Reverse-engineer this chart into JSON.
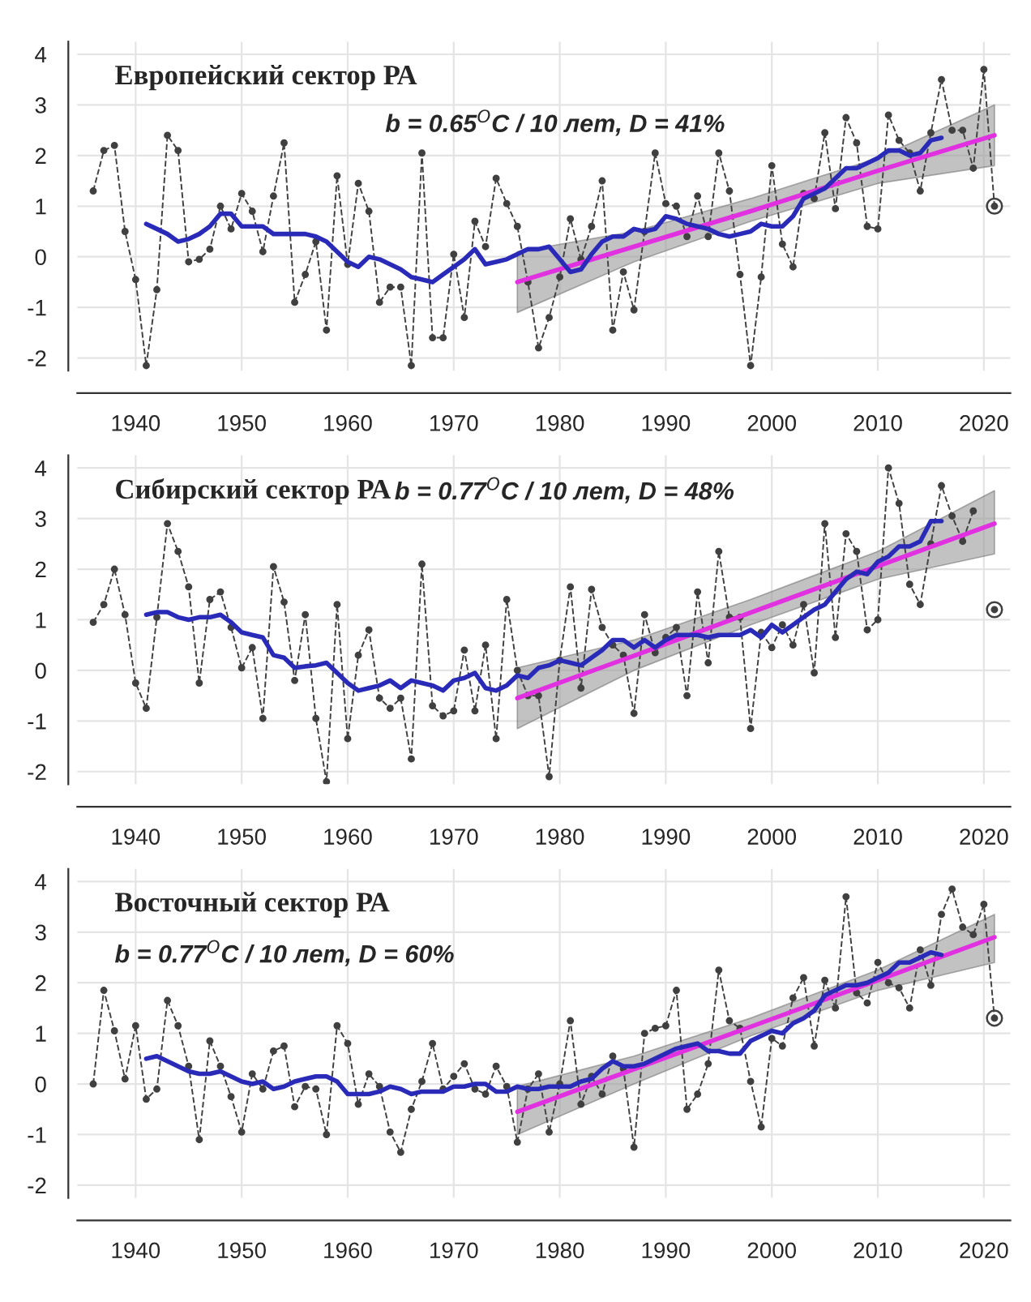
{
  "chart_data": [
    {
      "type": "line",
      "title": "Европейский сектор РА",
      "subtitle": "b = 0.65$^{O}$C / 10 лет, D = 41%",
      "x": [
        1936,
        1937,
        1938,
        1939,
        1940,
        1941,
        1942,
        1943,
        1944,
        1945,
        1946,
        1947,
        1948,
        1949,
        1950,
        1951,
        1952,
        1953,
        1954,
        1955,
        1956,
        1957,
        1958,
        1959,
        1960,
        1961,
        1962,
        1963,
        1964,
        1965,
        1966,
        1967,
        1968,
        1969,
        1970,
        1971,
        1972,
        1973,
        1974,
        1975,
        1976,
        1977,
        1978,
        1979,
        1980,
        1981,
        1982,
        1983,
        1984,
        1985,
        1986,
        1987,
        1988,
        1989,
        1990,
        1991,
        1992,
        1993,
        1994,
        1995,
        1996,
        1997,
        1998,
        1999,
        2000,
        2001,
        2002,
        2003,
        2004,
        2005,
        2006,
        2007,
        2008,
        2009,
        2010,
        2011,
        2012,
        2013,
        2014,
        2015,
        2016,
        2017,
        2018,
        2019,
        2020,
        2021
      ],
      "xlim": [
        1934.5,
        2022.5
      ],
      "ylim": [
        -2.25,
        4.25
      ],
      "xticks": [
        1940,
        1950,
        1960,
        1970,
        1980,
        1990,
        2000,
        2010,
        2020
      ],
      "yticks": [
        -2,
        -1,
        0,
        1,
        2,
        3,
        4
      ],
      "grid": true,
      "series": [
        {
          "color": "#404040",
          "line_style": "dashed",
          "marker": "circle",
          "values": [
            1.3,
            2.1,
            2.2,
            0.5,
            -0.45,
            -2.15,
            -0.65,
            2.4,
            2.1,
            -0.1,
            -0.05,
            0.15,
            1.0,
            0.55,
            1.25,
            0.9,
            0.1,
            1.2,
            2.25,
            -0.9,
            -0.35,
            0.3,
            -1.45,
            1.6,
            -0.15,
            1.45,
            0.9,
            -0.9,
            -0.6,
            -0.6,
            -2.15,
            2.05,
            -1.6,
            -1.6,
            0.05,
            -1.2,
            0.7,
            0.2,
            1.55,
            1.05,
            0.6,
            -0.5,
            -1.8,
            -1.2,
            -0.4,
            0.75,
            -0.05,
            0.6,
            1.5,
            -1.45,
            -0.3,
            -1.05,
            0.5,
            2.05,
            1.05,
            1.0,
            0.4,
            1.2,
            0.4,
            2.05,
            1.3,
            -0.35,
            -2.15,
            -0.4,
            1.8,
            0.25,
            -0.2,
            1.25,
            1.15,
            2.45,
            0.95,
            2.75,
            2.25,
            0.6,
            0.55,
            2.8,
            2.3,
            2.05,
            1.3,
            2.45,
            3.5,
            2.5,
            2.5,
            1.75,
            3.7,
            1.0
          ]
        },
        {
          "type": "scatter",
          "color": "#404040",
          "marker": "circle",
          "x": [
            2021
          ],
          "values": [
            1.0
          ]
        },
        {
          "color": "#e030e0",
          "line_style": "solid",
          "x": [
            1976,
            1987,
            1998,
            2010,
            2021
          ],
          "values": [
            -0.5,
            0.2,
            0.9,
            1.7,
            2.4
          ],
          "lower": [
            -1.1,
            -0.1,
            0.7,
            1.45,
            1.8
          ],
          "upper": [
            0.1,
            0.5,
            1.15,
            1.95,
            3.0
          ]
        },
        {
          "color": "#2a2ab8",
          "line_style": "solid",
          "x": [
            1941,
            1942,
            1943,
            1944,
            1945,
            1946,
            1947,
            1948,
            1949,
            1950,
            1951,
            1952,
            1953,
            1954,
            1955,
            1956,
            1957,
            1958,
            1959,
            1960,
            1961,
            1962,
            1963,
            1964,
            1965,
            1966,
            1967,
            1968,
            1969,
            1970,
            1971,
            1972,
            1973,
            1974,
            1975,
            1976,
            1977,
            1978,
            1979,
            1980,
            1981,
            1982,
            1983,
            1984,
            1985,
            1986,
            1987,
            1988,
            1989,
            1990,
            1991,
            1992,
            1993,
            1994,
            1995,
            1996,
            1997,
            1998,
            1999,
            2000,
            2001,
            2002,
            2003,
            2004,
            2005,
            2006,
            2007,
            2008,
            2009,
            2010,
            2011,
            2012,
            2013,
            2014,
            2015,
            2016
          ],
          "values": [
            0.65,
            0.55,
            0.45,
            0.3,
            0.35,
            0.45,
            0.6,
            0.85,
            0.85,
            0.6,
            0.6,
            0.6,
            0.45,
            0.45,
            0.45,
            0.45,
            0.4,
            0.3,
            0.1,
            -0.1,
            -0.2,
            0.0,
            -0.05,
            -0.15,
            -0.25,
            -0.4,
            -0.45,
            -0.5,
            -0.35,
            -0.2,
            -0.05,
            0.15,
            -0.15,
            -0.1,
            -0.05,
            0.05,
            0.15,
            0.15,
            0.2,
            -0.05,
            -0.3,
            -0.25,
            0.05,
            0.3,
            0.4,
            0.4,
            0.55,
            0.5,
            0.55,
            0.8,
            0.75,
            0.65,
            0.6,
            0.55,
            0.45,
            0.4,
            0.45,
            0.5,
            0.65,
            0.6,
            0.6,
            0.8,
            1.15,
            1.25,
            1.35,
            1.55,
            1.75,
            1.75,
            1.85,
            1.95,
            2.1,
            2.1,
            2.0,
            2.05,
            2.3,
            2.35
          ]
        }
      ]
    },
    {
      "type": "line",
      "title": "Сибирский сектор РА",
      "subtitle": "b = 0.77$^{O}$C / 10 лет, D = 48%",
      "x": [
        1936,
        1937,
        1938,
        1939,
        1940,
        1941,
        1942,
        1943,
        1944,
        1945,
        1946,
        1947,
        1948,
        1949,
        1950,
        1951,
        1952,
        1953,
        1954,
        1955,
        1956,
        1957,
        1958,
        1959,
        1960,
        1961,
        1962,
        1963,
        1964,
        1965,
        1966,
        1967,
        1968,
        1969,
        1970,
        1971,
        1972,
        1973,
        1974,
        1975,
        1976,
        1977,
        1978,
        1979,
        1980,
        1981,
        1982,
        1983,
        1984,
        1985,
        1986,
        1987,
        1988,
        1989,
        1990,
        1991,
        1992,
        1993,
        1994,
        1995,
        1996,
        1997,
        1998,
        1999,
        2000,
        2001,
        2002,
        2003,
        2004,
        2005,
        2006,
        2007,
        2008,
        2009,
        2010,
        2011,
        2012,
        2013,
        2014,
        2015,
        2016,
        2017,
        2018,
        2019,
        2020,
        2021
      ],
      "xlim": [
        1934.5,
        2022.5
      ],
      "ylim": [
        -2.25,
        4.25
      ],
      "xticks": [
        1940,
        1950,
        1960,
        1970,
        1980,
        1990,
        2000,
        2010,
        2020
      ],
      "yticks": [
        -2,
        -1,
        0,
        1,
        2,
        3,
        4
      ],
      "grid": true,
      "series": [
        {
          "color": "#404040",
          "line_style": "dashed",
          "marker": "circle",
          "values": [
            0.95,
            1.3,
            2.0,
            1.1,
            -0.25,
            -0.75,
            1.05,
            2.9,
            2.35,
            1.65,
            -0.25,
            1.4,
            1.55,
            0.85,
            0.05,
            0.45,
            -0.95,
            2.05,
            1.35,
            -0.2,
            1.1,
            -0.95,
            -2.2,
            1.3,
            -1.35,
            0.3,
            0.8,
            -0.55,
            -0.75,
            -0.55,
            -1.75,
            2.1,
            -0.7,
            -0.9,
            -0.8,
            0.4,
            -0.8,
            0.5,
            -1.35,
            1.4,
            0.0,
            -0.5,
            -0.5,
            -2.1,
            0.2,
            1.65,
            -0.35,
            1.6,
            0.85,
            0.5,
            0.3,
            -0.85,
            1.1,
            0.35,
            0.65,
            0.85,
            -0.5,
            1.55,
            0.15,
            2.35,
            1.05,
            1.05,
            -1.15,
            0.75,
            0.45,
            0.9,
            0.5,
            1.3,
            -0.05,
            2.9,
            0.65,
            2.7,
            2.35,
            0.8,
            1.0,
            4.0,
            3.3,
            1.7,
            1.3,
            2.5,
            3.65,
            3.05,
            2.55,
            3.15,
            null,
            1.2
          ]
        },
        {
          "type": "scatter",
          "color": "#404040",
          "marker": "circle",
          "x": [
            2021
          ],
          "values": [
            1.2
          ]
        },
        {
          "color": "#e030e0",
          "line_style": "solid",
          "x": [
            1976,
            1987,
            1998,
            2010,
            2021
          ],
          "values": [
            -0.55,
            0.29,
            1.14,
            2.06,
            2.9
          ],
          "lower": [
            -1.15,
            0.0,
            0.9,
            1.8,
            2.3
          ],
          "upper": [
            0.05,
            0.6,
            1.4,
            2.35,
            3.55
          ]
        },
        {
          "color": "#2a2ab8",
          "line_style": "solid",
          "x": [
            1941,
            1942,
            1943,
            1944,
            1945,
            1946,
            1947,
            1948,
            1949,
            1950,
            1951,
            1952,
            1953,
            1954,
            1955,
            1956,
            1957,
            1958,
            1959,
            1960,
            1961,
            1962,
            1963,
            1964,
            1965,
            1966,
            1967,
            1968,
            1969,
            1970,
            1971,
            1972,
            1973,
            1974,
            1975,
            1976,
            1977,
            1978,
            1979,
            1980,
            1981,
            1982,
            1983,
            1984,
            1985,
            1986,
            1987,
            1988,
            1989,
            1990,
            1991,
            1992,
            1993,
            1994,
            1995,
            1996,
            1997,
            1998,
            1999,
            2000,
            2001,
            2002,
            2003,
            2004,
            2005,
            2006,
            2007,
            2008,
            2009,
            2010,
            2011,
            2012,
            2013,
            2014,
            2015,
            2016
          ],
          "values": [
            1.1,
            1.15,
            1.15,
            1.05,
            1.0,
            1.05,
            1.05,
            1.1,
            0.95,
            0.75,
            0.7,
            0.65,
            0.3,
            0.25,
            0.05,
            0.08,
            0.1,
            0.15,
            -0.05,
            -0.25,
            -0.4,
            -0.35,
            -0.3,
            -0.2,
            -0.35,
            -0.2,
            -0.25,
            -0.3,
            -0.4,
            -0.2,
            -0.15,
            -0.05,
            -0.35,
            -0.4,
            -0.3,
            -0.1,
            -0.15,
            0.05,
            0.1,
            0.2,
            0.15,
            0.1,
            0.25,
            0.4,
            0.6,
            0.6,
            0.45,
            0.6,
            0.45,
            0.6,
            0.7,
            0.7,
            0.7,
            0.65,
            0.7,
            0.7,
            0.7,
            0.8,
            0.65,
            0.9,
            0.75,
            0.9,
            1.05,
            1.2,
            1.3,
            1.55,
            1.8,
            1.95,
            1.9,
            2.15,
            2.25,
            2.45,
            2.45,
            2.55,
            2.95,
            2.95
          ]
        }
      ]
    },
    {
      "type": "line",
      "title": "Восточный сектор РА",
      "subtitle": "b = 0.77$^{O}$C / 10 лет, D = 60%",
      "x": [
        1936,
        1937,
        1938,
        1939,
        1940,
        1941,
        1942,
        1943,
        1944,
        1945,
        1946,
        1947,
        1948,
        1949,
        1950,
        1951,
        1952,
        1953,
        1954,
        1955,
        1956,
        1957,
        1958,
        1959,
        1960,
        1961,
        1962,
        1963,
        1964,
        1965,
        1966,
        1967,
        1968,
        1969,
        1970,
        1971,
        1972,
        1973,
        1974,
        1975,
        1976,
        1977,
        1978,
        1979,
        1980,
        1981,
        1982,
        1983,
        1984,
        1985,
        1986,
        1987,
        1988,
        1989,
        1990,
        1991,
        1992,
        1993,
        1994,
        1995,
        1996,
        1997,
        1998,
        1999,
        2000,
        2001,
        2002,
        2003,
        2004,
        2005,
        2006,
        2007,
        2008,
        2009,
        2010,
        2011,
        2012,
        2013,
        2014,
        2015,
        2016,
        2017,
        2018,
        2019,
        2020,
        2021
      ],
      "xlim": [
        1934.5,
        2022.5
      ],
      "ylim": [
        -2.25,
        4.25
      ],
      "xticks": [
        1940,
        1950,
        1960,
        1970,
        1980,
        1990,
        2000,
        2010,
        2020
      ],
      "yticks": [
        -2,
        -1,
        0,
        1,
        2,
        3,
        4
      ],
      "grid": true,
      "series": [
        {
          "color": "#404040",
          "line_style": "dashed",
          "marker": "circle",
          "values": [
            0.0,
            1.85,
            1.05,
            0.1,
            1.15,
            -0.3,
            -0.1,
            1.65,
            1.15,
            0.35,
            -1.1,
            0.85,
            0.35,
            -0.25,
            -0.95,
            0.2,
            -0.1,
            0.65,
            0.75,
            -0.45,
            -0.05,
            -0.1,
            -1.0,
            1.15,
            0.8,
            -0.4,
            0.2,
            -0.05,
            -0.95,
            -1.35,
            -0.5,
            0.05,
            0.8,
            -0.1,
            0.15,
            0.4,
            -0.1,
            -0.2,
            0.35,
            -0.05,
            -1.15,
            -0.1,
            0.2,
            -0.95,
            0.0,
            1.25,
            -0.4,
            0.15,
            -0.2,
            0.55,
            0.3,
            -1.25,
            1.0,
            1.1,
            1.15,
            1.85,
            -0.5,
            -0.2,
            0.4,
            2.25,
            1.25,
            1.1,
            0.05,
            -0.85,
            0.9,
            0.75,
            1.7,
            2.1,
            0.75,
            2.05,
            1.5,
            3.7,
            1.8,
            1.6,
            2.4,
            2.0,
            1.9,
            1.5,
            2.65,
            1.95,
            3.35,
            3.85,
            3.1,
            2.95,
            3.55,
            1.3
          ]
        },
        {
          "type": "scatter",
          "color": "#404040",
          "marker": "circle",
          "x": [
            2021
          ],
          "values": [
            1.3
          ]
        },
        {
          "color": "#e030e0",
          "line_style": "solid",
          "x": [
            1976,
            1987,
            1998,
            2010,
            2021
          ],
          "values": [
            -0.55,
            0.29,
            1.13,
            2.05,
            2.9
          ],
          "lower": [
            -1.0,
            0.0,
            0.95,
            1.85,
            2.4
          ],
          "upper": [
            -0.05,
            0.55,
            1.3,
            2.25,
            3.35
          ]
        },
        {
          "color": "#2a2ab8",
          "line_style": "solid",
          "x": [
            1941,
            1942,
            1943,
            1944,
            1945,
            1946,
            1947,
            1948,
            1949,
            1950,
            1951,
            1952,
            1953,
            1954,
            1955,
            1956,
            1957,
            1958,
            1959,
            1960,
            1961,
            1962,
            1963,
            1964,
            1965,
            1966,
            1967,
            1968,
            1969,
            1970,
            1971,
            1972,
            1973,
            1974,
            1975,
            1976,
            1977,
            1978,
            1979,
            1980,
            1981,
            1982,
            1983,
            1984,
            1985,
            1986,
            1987,
            1988,
            1989,
            1990,
            1991,
            1992,
            1993,
            1994,
            1995,
            1996,
            1997,
            1998,
            1999,
            2000,
            2001,
            2002,
            2003,
            2004,
            2005,
            2006,
            2007,
            2008,
            2009,
            2010,
            2011,
            2012,
            2013,
            2014,
            2015,
            2016
          ],
          "values": [
            0.5,
            0.55,
            0.45,
            0.35,
            0.25,
            0.2,
            0.2,
            0.25,
            0.15,
            0.05,
            0.0,
            0.05,
            -0.1,
            -0.05,
            0.05,
            0.1,
            0.15,
            0.15,
            0.05,
            -0.2,
            -0.2,
            -0.2,
            -0.15,
            -0.05,
            -0.1,
            -0.2,
            -0.15,
            -0.15,
            -0.15,
            -0.05,
            -0.05,
            0.0,
            0.0,
            -0.15,
            -0.15,
            -0.05,
            -0.1,
            -0.1,
            -0.05,
            -0.05,
            -0.05,
            0.05,
            0.1,
            0.3,
            0.45,
            0.35,
            0.35,
            0.4,
            0.5,
            0.6,
            0.7,
            0.75,
            0.8,
            0.65,
            0.65,
            0.6,
            0.6,
            0.85,
            0.95,
            1.05,
            1.0,
            1.2,
            1.3,
            1.45,
            1.75,
            1.85,
            1.95,
            1.95,
            2.0,
            2.1,
            2.2,
            2.4,
            2.4,
            2.5,
            2.6,
            2.55
          ]
        }
      ]
    }
  ]
}
